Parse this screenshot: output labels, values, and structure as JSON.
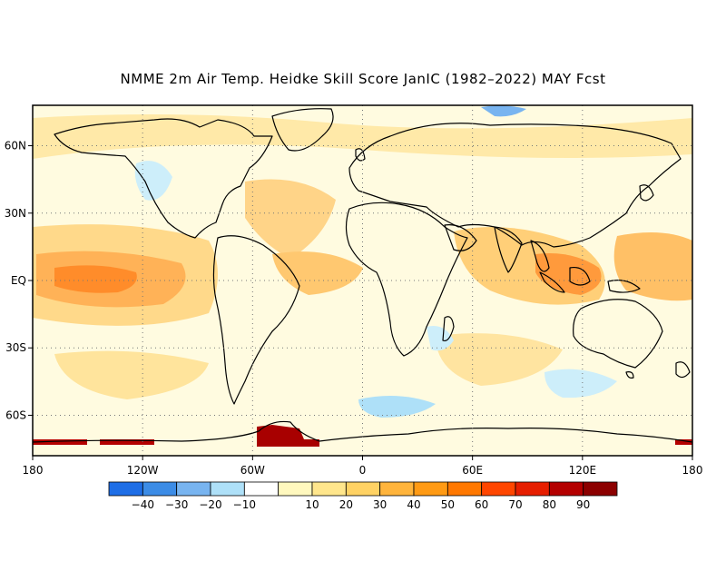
{
  "title": "NMME 2m Air Temp. Heidke Skill Score JanIC (1982–2022) MAY Fcst",
  "map": {
    "lon_range": [
      -180,
      180
    ],
    "lat_range": [
      -78,
      78
    ],
    "x_ticks": [
      {
        "lon": -180,
        "label": "180"
      },
      {
        "lon": -120,
        "label": "120W"
      },
      {
        "lon": -60,
        "label": "60W"
      },
      {
        "lon": 0,
        "label": "0"
      },
      {
        "lon": 60,
        "label": "60E"
      },
      {
        "lon": 120,
        "label": "120E"
      },
      {
        "lon": 180,
        "label": "180"
      }
    ],
    "y_ticks": [
      {
        "lat": 60,
        "label": "60N"
      },
      {
        "lat": 30,
        "label": "30N"
      },
      {
        "lat": 0,
        "label": "EQ"
      },
      {
        "lat": -30,
        "label": "30S"
      },
      {
        "lat": -60,
        "label": "60S"
      }
    ],
    "grid": "dotted"
  },
  "colorbar": {
    "colors": [
      "#1e6ee6",
      "#3c8ce6",
      "#78b4f0",
      "#aee0f8",
      "#ffffff",
      "#fff8be",
      "#ffe68c",
      "#ffd264",
      "#ffb43c",
      "#ff9a14",
      "#ff7800",
      "#ff4600",
      "#e61e00",
      "#b40000",
      "#8c0000"
    ],
    "tick_labels": [
      "−40",
      "−30",
      "−20",
      "−10",
      "10",
      "20",
      "30",
      "40",
      "50",
      "60",
      "70",
      "80",
      "90"
    ]
  }
}
